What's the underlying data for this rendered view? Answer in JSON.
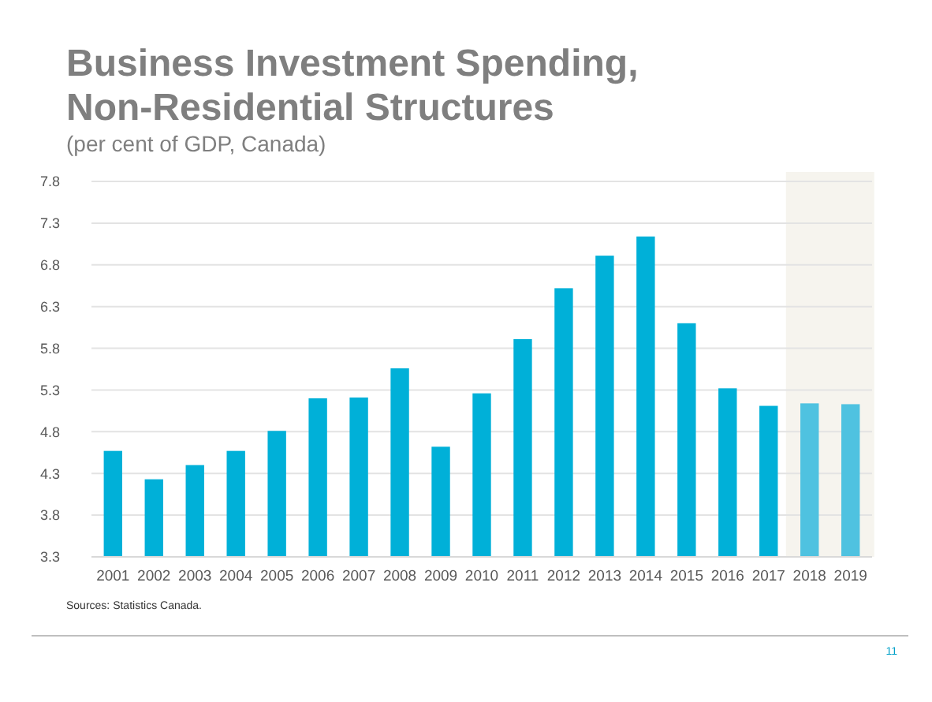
{
  "chart_data": {
    "type": "bar",
    "title": "Business Investment Spending,\nNon-Residential Structures",
    "subtitle": "(per cent of GDP, Canada)",
    "categories": [
      "2001",
      "2002",
      "2003",
      "2004",
      "2005",
      "2006",
      "2007",
      "2008",
      "2009",
      "2010",
      "2011",
      "2012",
      "2013",
      "2014",
      "2015",
      "2016",
      "2017",
      "2018",
      "2019"
    ],
    "values": [
      4.57,
      4.23,
      4.4,
      4.57,
      4.81,
      5.2,
      5.21,
      5.56,
      4.62,
      5.26,
      5.91,
      6.52,
      6.91,
      7.14,
      6.1,
      5.32,
      5.11,
      5.14,
      5.13
    ],
    "colors": [
      "#00b0d8",
      "#00b0d8",
      "#00b0d8",
      "#00b0d8",
      "#00b0d8",
      "#00b0d8",
      "#00b0d8",
      "#00b0d8",
      "#00b0d8",
      "#00b0d8",
      "#00b0d8",
      "#00b0d8",
      "#00b0d8",
      "#00b0d8",
      "#00b0d8",
      "#00b0d8",
      "#00b0d8",
      "#4fc2e0",
      "#4fc2e0"
    ],
    "ylim": [
      3.3,
      7.8
    ],
    "yticks": [
      3.3,
      3.8,
      4.3,
      4.8,
      5.3,
      5.8,
      6.3,
      6.8,
      7.3,
      7.8
    ],
    "grid": "y",
    "bands": [
      {
        "axis": "x",
        "from": "2018",
        "to": "2019",
        "color": "#f6f4ee"
      }
    ],
    "annotations": [
      "Sources: Statistics Canada.",
      "11"
    ]
  }
}
